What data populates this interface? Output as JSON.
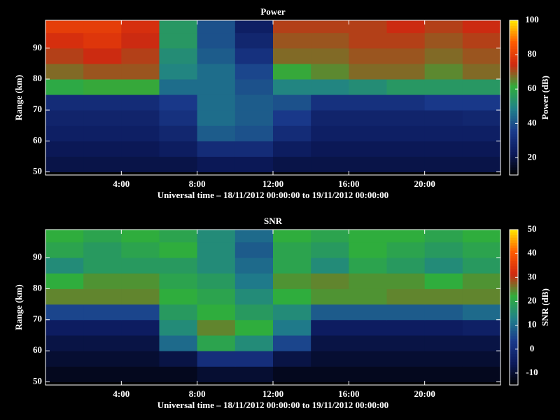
{
  "chart_data": [
    {
      "type": "heatmap",
      "title": "Power",
      "xlabel": "Universal time – 18/11/2012 00:00:00 to 19/11/2012 00:00:00",
      "ylabel": "Range (km)",
      "colorbar_label": "Power (dB)",
      "x": [
        1,
        3,
        5,
        7,
        9,
        11,
        13,
        15,
        17,
        19,
        21,
        23
      ],
      "y": [
        52.5,
        57.5,
        62.5,
        67.5,
        72.5,
        77.5,
        82.5,
        87.5,
        92.5,
        97.5
      ],
      "values": [
        [
          20,
          20,
          20,
          20,
          22,
          22,
          20,
          20,
          20,
          20,
          20,
          20
        ],
        [
          22,
          22,
          22,
          24,
          30,
          30,
          24,
          22,
          22,
          22,
          22,
          22
        ],
        [
          25,
          25,
          25,
          28,
          42,
          40,
          30,
          25,
          25,
          25,
          25,
          25
        ],
        [
          27,
          27,
          27,
          32,
          45,
          42,
          35,
          27,
          27,
          27,
          27,
          28
        ],
        [
          30,
          30,
          30,
          35,
          45,
          42,
          40,
          32,
          32,
          32,
          35,
          35
        ],
        [
          60,
          62,
          62,
          45,
          45,
          40,
          50,
          50,
          52,
          55,
          55,
          55
        ],
        [
          68,
          70,
          70,
          50,
          45,
          38,
          62,
          65,
          68,
          68,
          65,
          68
        ],
        [
          72,
          74,
          72,
          52,
          42,
          32,
          68,
          68,
          70,
          70,
          68,
          70
        ],
        [
          76,
          78,
          74,
          55,
          40,
          28,
          70,
          70,
          72,
          72,
          70,
          72
        ],
        [
          80,
          80,
          76,
          55,
          40,
          25,
          72,
          72,
          72,
          74,
          72,
          74
        ]
      ],
      "xlim": [
        0,
        24
      ],
      "xticks": [
        {
          "value": 4,
          "label": "4:00"
        },
        {
          "value": 8,
          "label": "8:00"
        },
        {
          "value": 12,
          "label": "12:00"
        },
        {
          "value": 16,
          "label": "16:00"
        },
        {
          "value": 20,
          "label": "20:00"
        }
      ],
      "ylim": [
        49,
        99
      ],
      "yticks": [
        50,
        60,
        70,
        80,
        90
      ],
      "clim": [
        10,
        100
      ],
      "cticks": [
        20,
        40,
        60,
        80,
        100
      ],
      "colormap": [
        "#000000",
        "#0c1a5c",
        "#1a3a8c",
        "#20808a",
        "#2fae3c",
        "#d02810",
        "#ff5a00",
        "#ffe800"
      ]
    },
    {
      "type": "heatmap",
      "title": "SNR",
      "xlabel": "Universal time – 18/11/2012 00:00:00 to 19/11/2012 00:00:00",
      "ylabel": "Range (km)",
      "colorbar_label": "SNR (dB)",
      "x": [
        1,
        3,
        5,
        7,
        9,
        11,
        13,
        15,
        17,
        19,
        21,
        23
      ],
      "y": [
        52.5,
        57.5,
        62.5,
        67.5,
        72.5,
        77.5,
        82.5,
        87.5,
        92.5,
        97.5
      ],
      "values": [
        [
          -12,
          -12,
          -12,
          -12,
          -10,
          -10,
          -12,
          -12,
          -12,
          -12,
          -12,
          -12
        ],
        [
          -10,
          -10,
          -10,
          -8,
          0,
          0,
          -8,
          -10,
          -10,
          -10,
          -10,
          -10
        ],
        [
          -8,
          -8,
          -8,
          10,
          20,
          15,
          5,
          -8,
          -8,
          -8,
          -8,
          -8
        ],
        [
          -5,
          -5,
          -5,
          15,
          25,
          22,
          12,
          -5,
          -5,
          -5,
          -5,
          -4
        ],
        [
          5,
          5,
          5,
          18,
          22,
          18,
          15,
          8,
          8,
          8,
          8,
          10
        ],
        [
          25,
          25,
          25,
          22,
          20,
          15,
          22,
          24,
          24,
          25,
          25,
          25
        ],
        [
          22,
          24,
          24,
          20,
          18,
          12,
          24,
          25,
          24,
          24,
          22,
          24
        ],
        [
          15,
          18,
          18,
          18,
          15,
          10,
          20,
          15,
          20,
          18,
          15,
          18
        ],
        [
          20,
          18,
          20,
          22,
          15,
          8,
          20,
          18,
          22,
          20,
          18,
          20
        ],
        [
          22,
          20,
          22,
          20,
          15,
          10,
          22,
          20,
          22,
          22,
          20,
          22
        ]
      ],
      "xlim": [
        0,
        24
      ],
      "xticks": [
        {
          "value": 4,
          "label": "4:00"
        },
        {
          "value": 8,
          "label": "8:00"
        },
        {
          "value": 12,
          "label": "12:00"
        },
        {
          "value": 16,
          "label": "16:00"
        },
        {
          "value": 20,
          "label": "20:00"
        }
      ],
      "ylim": [
        49,
        99
      ],
      "yticks": [
        50,
        60,
        70,
        80,
        90
      ],
      "clim": [
        -15,
        50
      ],
      "cticks": [
        -10,
        0,
        10,
        20,
        30,
        40,
        50
      ],
      "colormap": [
        "#000000",
        "#0c1a5c",
        "#1a3a8c",
        "#20808a",
        "#2fae3c",
        "#d02810",
        "#ff5a00",
        "#ffe800"
      ]
    }
  ]
}
